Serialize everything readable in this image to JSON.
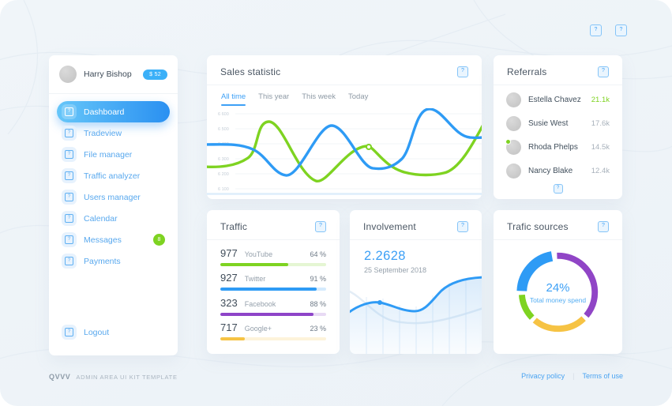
{
  "sidebar": {
    "user": {
      "name": "Harry Bishop",
      "badge": "$ 52"
    },
    "items": [
      {
        "label": "Dashboard",
        "active": true
      },
      {
        "label": "Tradeview"
      },
      {
        "label": "File manager"
      },
      {
        "label": "Traffic analyzer"
      },
      {
        "label": "Users manager"
      },
      {
        "label": "Calendar"
      },
      {
        "label": "Messages",
        "badge": "8"
      },
      {
        "label": "Payments"
      }
    ],
    "logout": "Logout"
  },
  "sales": {
    "title": "Sales statistic",
    "tabs": [
      "All time",
      "This year",
      "This week",
      "Today"
    ],
    "active_tab": "All time",
    "y_labels": [
      "6 600",
      "6 500",
      "6 400",
      "6 300",
      "6 200",
      "6 100"
    ]
  },
  "referrals": {
    "title": "Referrals",
    "rows": [
      {
        "name": "Estella Chavez",
        "value": "21.1k",
        "highlight": true
      },
      {
        "name": "Susie West",
        "value": "17.6k"
      },
      {
        "name": "Rhoda Phelps",
        "value": "14.5k"
      },
      {
        "name": "Nancy Blake",
        "value": "12.4k"
      }
    ]
  },
  "traffic": {
    "title": "Traffic",
    "rows": [
      {
        "count": "977",
        "label": "YouTube",
        "percent": "64 %",
        "value": 64,
        "color": "#7ed321"
      },
      {
        "count": "927",
        "label": "Twitter",
        "percent": "91 %",
        "value": 91,
        "color": "#2e9bf5"
      },
      {
        "count": "323",
        "label": "Facebook",
        "percent": "88 %",
        "value": 88,
        "color": "#8e44c8"
      },
      {
        "count": "717",
        "label": "Google+",
        "percent": "23 %",
        "value": 23,
        "color": "#f6c344"
      }
    ]
  },
  "involvement": {
    "title": "Involvement",
    "value": "2.2628",
    "date": "25 September 2018"
  },
  "sources": {
    "title": "Trafic sources",
    "center_value": "24%",
    "center_label": "Total money spend",
    "segments": [
      {
        "color": "#9045c6",
        "start": 358,
        "sweep": 132,
        "width": 8
      },
      {
        "color": "#f6c344",
        "start": 136,
        "sweep": 84,
        "width": 8
      },
      {
        "color": "#7ed321",
        "start": 226,
        "sweep": 40,
        "width": 8
      },
      {
        "color": "#2e9bf5",
        "start": 272,
        "sweep": 78,
        "width": 13
      }
    ]
  },
  "footer": {
    "logo": "QVVV",
    "tagline": "ADMIN AREA UI KIT TEMPLATE",
    "links": [
      "Privacy policy",
      "Terms of use"
    ]
  },
  "chart_data": [
    {
      "type": "line",
      "title": "Sales statistic",
      "x": [
        0,
        1,
        2,
        3,
        4,
        5,
        6,
        7,
        8,
        9,
        10
      ],
      "series": [
        {
          "name": "blue",
          "color": "#2e9bf5",
          "values": [
            6380,
            6370,
            6250,
            6170,
            6400,
            6500,
            6250,
            6210,
            6350,
            6620,
            6430
          ]
        },
        {
          "name": "green",
          "color": "#7ed321",
          "values": [
            6240,
            6250,
            6480,
            6530,
            6250,
            6140,
            6280,
            6370,
            6180,
            6220,
            6530
          ]
        }
      ],
      "ylim": [
        6100,
        6650
      ],
      "ytick_labels": [
        "6 600",
        "6 500",
        "6 400",
        "6 300",
        "6 200",
        "6 100"
      ],
      "grid": true,
      "legend": false
    },
    {
      "type": "bar",
      "title": "Traffic",
      "categories": [
        "YouTube",
        "Twitter",
        "Facebook",
        "Google+"
      ],
      "counts": [
        977,
        927,
        323,
        717
      ],
      "values": [
        64,
        91,
        88,
        23
      ],
      "unit": "%",
      "colors": [
        "#7ed321",
        "#2e9bf5",
        "#8e44c8",
        "#f6c344"
      ]
    },
    {
      "type": "area",
      "title": "Involvement",
      "headline_value": 2.2628,
      "date": "25 September 2018",
      "values": [
        52,
        58,
        62,
        61,
        58,
        58,
        63,
        75,
        88,
        95,
        97
      ],
      "marker_index": 2,
      "color": "#2e9bf5"
    },
    {
      "type": "pie",
      "title": "Trafic sources",
      "center_label": "24% Total money spend",
      "slices": [
        {
          "name": "purple",
          "color": "#9045c6",
          "value": 37
        },
        {
          "name": "yellow",
          "color": "#f6c344",
          "value": 23
        },
        {
          "name": "green",
          "color": "#7ed321",
          "value": 11
        },
        {
          "name": "blue",
          "color": "#2e9bf5",
          "value": 24,
          "highlight": true
        }
      ]
    }
  ]
}
